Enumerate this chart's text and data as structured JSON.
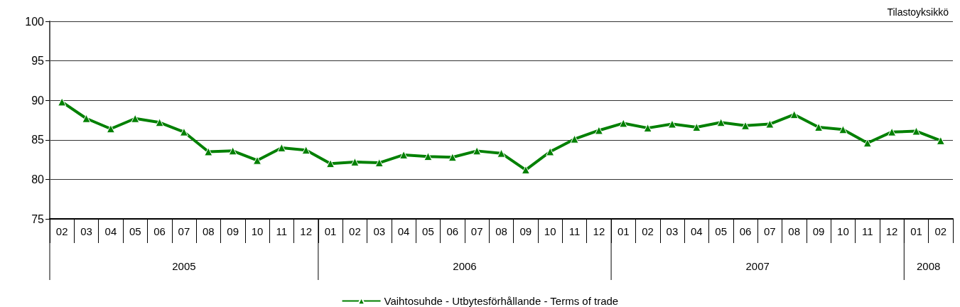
{
  "chart_data": {
    "type": "line",
    "categories": [
      "02",
      "03",
      "04",
      "05",
      "06",
      "07",
      "08",
      "09",
      "10",
      "11",
      "12",
      "01",
      "02",
      "03",
      "04",
      "05",
      "06",
      "07",
      "08",
      "09",
      "10",
      "11",
      "12",
      "01",
      "02",
      "03",
      "04",
      "05",
      "06",
      "07",
      "08",
      "09",
      "10",
      "11",
      "12",
      "01",
      "02"
    ],
    "series": [
      {
        "name": "Vaihtosuhde - Utbytesförhållande - Terms of trade",
        "color": "#008000",
        "values": [
          89.8,
          87.7,
          86.4,
          87.7,
          87.2,
          86.0,
          83.5,
          83.6,
          82.4,
          84.0,
          83.7,
          82.0,
          82.2,
          82.1,
          83.1,
          82.9,
          82.8,
          83.6,
          83.3,
          81.2,
          83.5,
          85.1,
          86.2,
          87.1,
          86.5,
          87.0,
          86.6,
          87.2,
          86.8,
          87.0,
          88.2,
          86.6,
          86.3,
          84.6,
          86.0,
          86.1,
          84.9
        ]
      }
    ],
    "ylim": [
      75,
      100
    ],
    "yticks": [
      75,
      80,
      85,
      90,
      95,
      100
    ],
    "annotations": [
      "Tilastoyksikkö",
      "2005",
      "2006",
      "2007",
      "2008"
    ],
    "grid": "y",
    "legend": "bottom",
    "marker": "triangle",
    "line_style": "solid"
  }
}
